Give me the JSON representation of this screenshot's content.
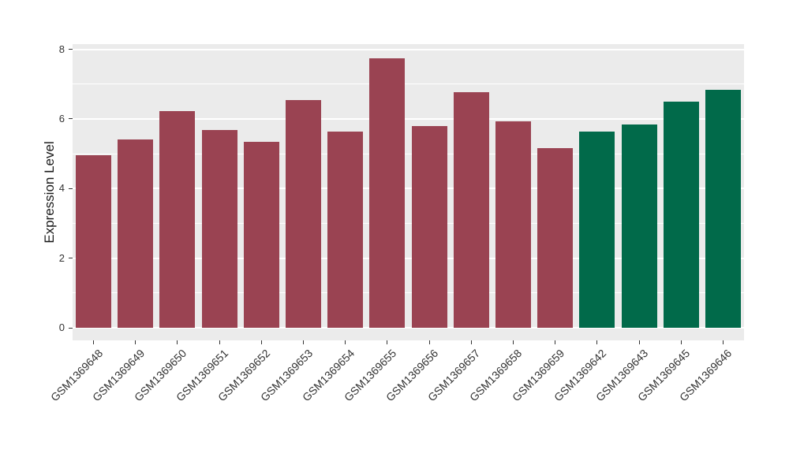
{
  "figure": {
    "background_color": "#FFFFFF",
    "panel_background_color": "#EBEBEB",
    "gridline_color": "#FFFFFF",
    "tick_text_color": "#333333",
    "group1_color": "#9A4352",
    "group2_color": "#016A4A"
  },
  "chart_data": {
    "type": "bar",
    "title": "",
    "xlabel": "",
    "ylabel": "Expression Level",
    "ylim": [
      0,
      8.1
    ],
    "yticks": [
      0,
      2,
      4,
      6,
      8
    ],
    "minor_yticks": [
      1,
      3,
      5,
      7
    ],
    "grid": true,
    "legend": "none",
    "categories": [
      "GSM1369648",
      "GSM1369649",
      "GSM1369650",
      "GSM1369651",
      "GSM1369652",
      "GSM1369653",
      "GSM1369654",
      "GSM1369655",
      "GSM1369656",
      "GSM1369657",
      "GSM1369658",
      "GSM1369659",
      "GSM1369642",
      "GSM1369643",
      "GSM1369645",
      "GSM1369646"
    ],
    "values": [
      4.95,
      5.42,
      6.22,
      5.68,
      5.34,
      6.55,
      5.63,
      7.74,
      5.79,
      6.76,
      5.93,
      5.17,
      5.64,
      5.85,
      6.49,
      6.84
    ],
    "bar_colors": [
      "#9A4352",
      "#9A4352",
      "#9A4352",
      "#9A4352",
      "#9A4352",
      "#9A4352",
      "#9A4352",
      "#9A4352",
      "#9A4352",
      "#9A4352",
      "#9A4352",
      "#9A4352",
      "#016A4A",
      "#016A4A",
      "#016A4A",
      "#016A4A"
    ]
  }
}
